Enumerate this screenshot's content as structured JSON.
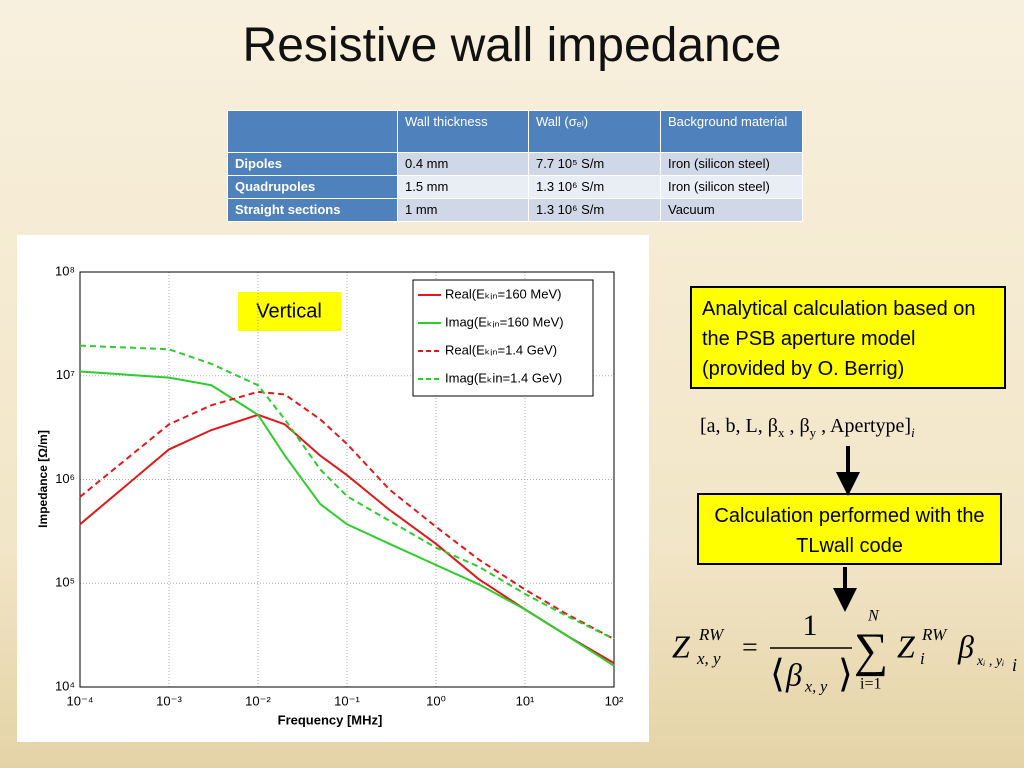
{
  "title": "Resistive wall impedance",
  "table": {
    "header": [
      "",
      "Wall thickness",
      "Wall (σₑₗ)",
      "Background material"
    ],
    "rows": [
      [
        "Dipoles",
        "0.4 mm",
        "7.7 10⁵ S/m",
        "Iron (silicon steel)"
      ],
      [
        "Quadrupoles",
        "1.5 mm",
        "1.3 10⁶ S/m",
        "Iron (silicon steel)"
      ],
      [
        "Straight sections",
        "1 mm",
        "1.3 10⁶ S/m",
        "Vacuum"
      ]
    ]
  },
  "chart_data": {
    "type": "line",
    "annotation": "Vertical",
    "x_label": "Frequency [MHz]",
    "y_label": "Impedance [Ω/m]",
    "log_x": true,
    "log_y": true,
    "grid": true,
    "legend": "upper right",
    "xlim": [
      0.0001,
      100
    ],
    "ylim": [
      10000,
      100000000
    ],
    "xticks": [
      {
        "value": 0.0001,
        "label": "10⁻⁴"
      },
      {
        "value": 0.001,
        "label": "10⁻³"
      },
      {
        "value": 0.01,
        "label": "10⁻²"
      },
      {
        "value": 0.1,
        "label": "10⁻¹"
      },
      {
        "value": 1,
        "label": "10⁰"
      },
      {
        "value": 10,
        "label": "10¹"
      },
      {
        "value": 100,
        "label": "10²"
      }
    ],
    "yticks": [
      {
        "value": 10000,
        "label": "10⁴"
      },
      {
        "value": 100000,
        "label": "10⁵"
      },
      {
        "value": 1000000,
        "label": "10⁶"
      },
      {
        "value": 10000000,
        "label": "10⁷"
      },
      {
        "value": 100000000,
        "label": "10⁸"
      }
    ],
    "x": [
      0.0001,
      0.001,
      0.003,
      0.01,
      0.02,
      0.05,
      0.1,
      0.3,
      1,
      3,
      10,
      30,
      100
    ],
    "series": [
      {
        "name": "Real(Eₖᵢₙ=160 MeV)",
        "color": "#e0191c",
        "dash": false,
        "values": [
          370000,
          1950000,
          3000000,
          4200000,
          3400000,
          1700000,
          1100000,
          510000,
          240000,
          110000,
          56000,
          31000,
          17000
        ]
      },
      {
        "name": "Imag(Eₖᵢₙ=160 MeV)",
        "color": "#2ecc2e",
        "dash": false,
        "values": [
          11000000,
          9600000,
          8100000,
          4200000,
          1700000,
          580000,
          370000,
          240000,
          150000,
          98000,
          56000,
          31000,
          16000
        ]
      },
      {
        "name": "Real(Eₖᵢₙ=1.4 GeV)",
        "color": "#e0191c",
        "dash": true,
        "values": [
          680000,
          3400000,
          5200000,
          7000000,
          6600000,
          3800000,
          2200000,
          800000,
          350000,
          170000,
          87000,
          50000,
          29000
        ]
      },
      {
        "name": "Imag(Eₖin=1.4 GeV)",
        "color": "#2ecc2e",
        "dash": true,
        "values": [
          19500000,
          18000000,
          13000000,
          8100000,
          3800000,
          1250000,
          690000,
          400000,
          220000,
          145000,
          79000,
          48000,
          29000
        ]
      }
    ]
  },
  "box1": "Analytical calculation based on the PSB aperture model (provided by O. Berrig)",
  "parameters": [
    "[a, b, L, β",
    "x",
    " , β",
    "y",
    " , Apertype]",
    "i"
  ],
  "box2": "Calculation performed with the TLwall code",
  "formula": {
    "lhs": "Z",
    "lhs_sup": "RW",
    "lhs_sub": "x, y",
    "eq": "=",
    "num": "1",
    "beta": "β",
    "beta_sub": "x, y",
    "sum": "∑",
    "sum_top": "N",
    "sum_bottom": "i=1",
    "z": "Z",
    "z_sup": "RW",
    "z_sub": "i",
    "beta2": "β",
    "beta2_sub": "xᵢ , yᵢ",
    "beta2_outer": "i"
  }
}
